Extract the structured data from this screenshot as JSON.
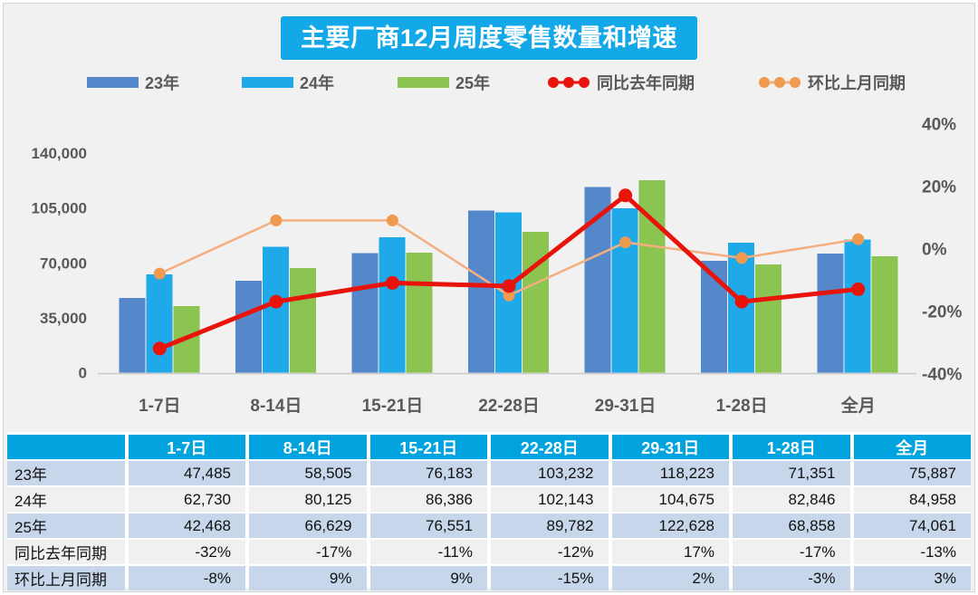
{
  "chart_data": {
    "type": "combo-bar-line",
    "title": "主要厂商12月周度零售数量和增速",
    "categories": [
      "1-7日",
      "8-14日",
      "15-21日",
      "22-28日",
      "29-31日",
      "1-28日",
      "全月"
    ],
    "bar_series": [
      {
        "name": "23年",
        "color": "#5588cb",
        "values": [
          47485,
          58505,
          76183,
          103232,
          118223,
          71351,
          75887
        ]
      },
      {
        "name": "24年",
        "color": "#1fa9e8",
        "values": [
          62730,
          80125,
          86386,
          102143,
          104675,
          82846,
          84958
        ]
      },
      {
        "name": "25年",
        "color": "#8cc451",
        "values": [
          42468,
          66629,
          76551,
          89782,
          122628,
          68858,
          74061
        ]
      }
    ],
    "line_series": [
      {
        "name": "同比去年同期",
        "color": "#e8130b",
        "marker_color": "#e8130b",
        "stroke_width": 5,
        "marker_r": 7.5,
        "values_pct": [
          -32,
          -17,
          -11,
          -12,
          17,
          -17,
          -13
        ]
      },
      {
        "name": "环比上月同期",
        "color": "#f5ae80",
        "marker_color": "#ef9b4f",
        "stroke_width": 2.5,
        "marker_r": 6.5,
        "values_pct": [
          -8,
          9,
          9,
          -15,
          2,
          -3,
          3
        ]
      }
    ],
    "left_axis": {
      "min": 0,
      "max": 140000,
      "ticks": [
        0,
        35000,
        70000,
        105000,
        140000
      ],
      "tick_labels": [
        "0",
        "35,000",
        "70,000",
        "105,000",
        "140,000"
      ]
    },
    "right_axis": {
      "min": -40,
      "max": 40,
      "ticks": [
        -40,
        -20,
        0,
        20,
        40
      ],
      "tick_labels": [
        "-40%",
        "-20%",
        "0%",
        "20%",
        "40%"
      ]
    },
    "legend_position": "top",
    "grid": false
  },
  "colors": {
    "title_bg": "#13a8e8",
    "title_text": "#ffffff",
    "table_header_bg": "#00a3de",
    "table_row_blue": "#c7d6ea",
    "table_row_gray": "#f0f0f0",
    "axis_text": "#595959",
    "page_bg": "#f1f1f1"
  },
  "table": {
    "header": [
      "",
      "1-7日",
      "8-14日",
      "15-21日",
      "22-28日",
      "29-31日",
      "1-28日",
      "全月"
    ],
    "rows": [
      {
        "label": "23年",
        "values": [
          "47,485",
          "58,505",
          "76,183",
          "103,232",
          "118,223",
          "71,351",
          "75,887"
        ]
      },
      {
        "label": "24年",
        "values": [
          "62,730",
          "80,125",
          "86,386",
          "102,143",
          "104,675",
          "82,846",
          "84,958"
        ]
      },
      {
        "label": "25年",
        "values": [
          "42,468",
          "66,629",
          "76,551",
          "89,782",
          "122,628",
          "68,858",
          "74,061"
        ]
      },
      {
        "label": "同比去年同期",
        "values": [
          "-32%",
          "-17%",
          "-11%",
          "-12%",
          "17%",
          "-17%",
          "-13%"
        ]
      },
      {
        "label": "环比上月同期",
        "values": [
          "-8%",
          "9%",
          "9%",
          "-15%",
          "2%",
          "-3%",
          "3%"
        ]
      }
    ]
  }
}
